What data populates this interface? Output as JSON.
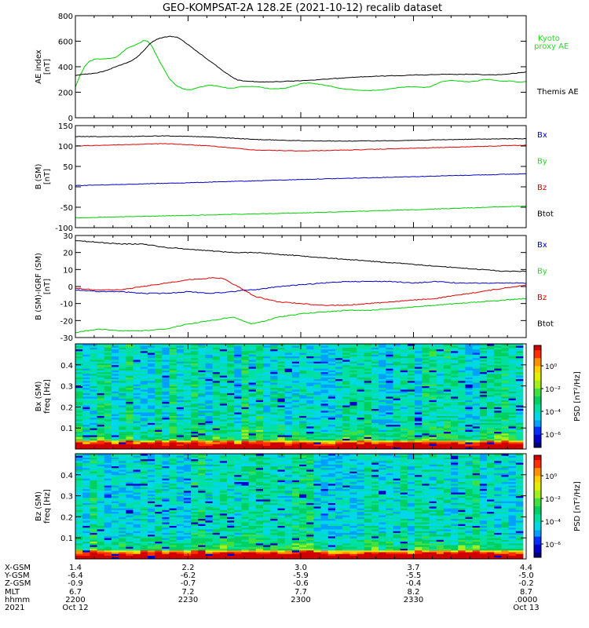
{
  "title": "GEO-KOMPSAT-2A 128.2E (2021-10-12) recalib dataset",
  "colors": {
    "black": "#000000",
    "red": "#e00000",
    "green": "#00d000",
    "blue": "#0000c8",
    "legend_green": "#22dd22",
    "legend_blue": "#0000c8",
    "legend_red": "#d00000"
  },
  "chart_data": [
    {
      "type": "line",
      "id": "ae",
      "ylabel_lines": [
        "AE index",
        "[nT]"
      ],
      "ylim": [
        0,
        800
      ],
      "yticks": [
        0,
        200,
        400,
        600,
        800
      ],
      "time_range": [
        "22:00",
        "24:00"
      ],
      "series": [
        {
          "name": "Kyoto proxy AE",
          "legend_lines": [
            "Kyoto",
            "proxy AE"
          ],
          "color": "#00d000",
          "x": [
            0,
            0.2,
            0.4,
            0.6,
            0.85,
            1.0,
            1.15,
            1.3,
            1.55,
            1.75,
            2.0,
            2.25,
            2.5,
            2.7,
            2.9,
            3.0,
            3.2,
            3.4,
            3.6,
            3.8,
            4.0,
            4.2,
            4.5,
            4.8,
            5.0,
            5.2,
            5.5,
            5.8,
            6.0,
            6.2,
            6.5,
            6.8,
            7.0,
            7.2,
            7.4,
            7.7,
            8.0,
            8.3,
            8.6,
            8.9,
            9.2,
            9.5,
            9.8,
            10.0,
            10.3,
            10.6,
            10.9,
            11.2,
            11.5,
            11.8,
            12.1,
            12.4,
            12.7,
            13.0,
            13.3,
            13.6,
            13.9,
            14.2,
            14.5,
            14.8,
            15.1,
            15.4,
            15.7,
            16.0,
            16.3,
            16.6,
            16.9,
            17.2,
            17.5,
            17.8,
            18.1,
            18.4,
            18.7,
            19.0,
            19.3,
            19.6,
            19.8,
            20.0
          ],
          "y": [
            240,
            330,
            400,
            440,
            460,
            462,
            460,
            462,
            465,
            470,
            500,
            540,
            560,
            575,
            590,
            605,
            600,
            560,
            490,
            420,
            360,
            300,
            250,
            225,
            220,
            222,
            240,
            250,
            255,
            250,
            240,
            232,
            232,
            240,
            245,
            245,
            245,
            238,
            228,
            228,
            230,
            240,
            255,
            268,
            272,
            268,
            260,
            250,
            240,
            230,
            222,
            218,
            215,
            214,
            215,
            218,
            225,
            232,
            240,
            245,
            242,
            238,
            240,
            262,
            285,
            292,
            290,
            285,
            282,
            288,
            300,
            300,
            292,
            285,
            288,
            280,
            280,
            285
          ]
        },
        {
          "name": "Themis AE",
          "legend_lines": [
            "Themis AE"
          ],
          "color": "#000000",
          "x": [
            0,
            0.3,
            0.6,
            0.9,
            1.2,
            1.5,
            1.8,
            2.1,
            2.4,
            2.7,
            3.0,
            3.3,
            3.6,
            3.9,
            4.2,
            4.5,
            4.8,
            5.1,
            5.4,
            5.7,
            6.0,
            6.3,
            6.6,
            6.9,
            7.2,
            7.5,
            7.8,
            8.1,
            8.4,
            8.7,
            9.0,
            9.3,
            9.6,
            9.9,
            10.2,
            10.5,
            10.8,
            11.1,
            11.4,
            11.7,
            12.0,
            12.3,
            12.6,
            12.9,
            13.2,
            13.5,
            13.8,
            14.1,
            14.4,
            14.7,
            15.0,
            15.3,
            15.6,
            15.9,
            16.2,
            16.5,
            16.8,
            17.1,
            17.4,
            17.7,
            18.0,
            18.3,
            18.6,
            18.9,
            19.2,
            19.5,
            19.8,
            20.0
          ],
          "y": [
            330,
            340,
            345,
            350,
            360,
            380,
            400,
            420,
            440,
            470,
            520,
            580,
            615,
            630,
            640,
            632,
            600,
            560,
            520,
            480,
            440,
            400,
            360,
            325,
            295,
            288,
            285,
            282,
            280,
            282,
            283,
            286,
            288,
            290,
            293,
            295,
            298,
            302,
            306,
            310,
            314,
            318,
            320,
            322,
            324,
            326,
            328,
            330,
            330,
            333,
            335,
            336,
            335,
            338,
            340,
            340,
            339,
            340,
            341,
            340,
            338,
            337,
            336,
            338,
            342,
            348,
            355,
            360
          ]
        }
      ]
    },
    {
      "type": "line",
      "id": "bsm",
      "ylabel_lines": [
        "B (SM)",
        "[nT]"
      ],
      "ylim": [
        -100,
        150
      ],
      "yticks": [
        -100,
        -50,
        0,
        50,
        100,
        150
      ],
      "series": [
        {
          "name": "Bx",
          "color": "#0000c8",
          "x": [
            0,
            5,
            10,
            15,
            20
          ],
          "y": [
            3,
            10,
            18,
            25,
            32
          ]
        },
        {
          "name": "By",
          "color": "#00d000",
          "x": [
            0,
            5,
            10,
            15,
            20
          ],
          "y": [
            -76,
            -70,
            -64,
            -56,
            -47
          ]
        },
        {
          "name": "Bz",
          "color": "#e00000",
          "x": [
            0,
            2,
            4,
            6,
            8,
            10,
            12,
            14,
            16,
            18,
            20
          ],
          "y": [
            100,
            103,
            106,
            100,
            90,
            88,
            90,
            93,
            96,
            99,
            102
          ]
        },
        {
          "name": "Btot",
          "color": "#000000",
          "x": [
            0,
            2,
            4,
            6,
            8,
            10,
            12,
            14,
            16,
            18,
            20
          ],
          "y": [
            123,
            123,
            125,
            122,
            116,
            113,
            112,
            113,
            115,
            117,
            118
          ]
        }
      ]
    },
    {
      "type": "line",
      "id": "bigrf",
      "ylabel_lines": [
        "B (SM)-IGRF (SM)",
        "[nT]"
      ],
      "ylim": [
        -30,
        30
      ],
      "yticks": [
        -30,
        -20,
        -10,
        0,
        10,
        20,
        30
      ],
      "series": [
        {
          "name": "Bx",
          "color": "#0000c8",
          "x": [
            0,
            1,
            2,
            3,
            4,
            5,
            6,
            7,
            7.5,
            8,
            9,
            10,
            11,
            12,
            13,
            14,
            15,
            16,
            17,
            18,
            19,
            20
          ],
          "y": [
            -2,
            -3,
            -3,
            -4,
            -4,
            -3,
            -4,
            -3,
            -2,
            -2,
            0,
            1,
            2,
            3,
            3,
            3,
            2,
            3,
            2,
            2,
            2,
            2
          ]
        },
        {
          "name": "By",
          "color": "#00d000",
          "x": [
            0,
            1,
            2,
            3,
            4,
            5,
            6,
            7,
            7.8,
            8.5,
            9,
            10,
            11,
            12,
            13,
            14,
            15,
            16,
            17,
            18,
            19,
            20
          ],
          "y": [
            -27,
            -25,
            -26,
            -26,
            -25,
            -22,
            -20,
            -18,
            -22,
            -20,
            -18,
            -16,
            -15,
            -14,
            -14,
            -13,
            -12,
            -11,
            -10,
            -9,
            -8,
            -7
          ]
        },
        {
          "name": "Bz",
          "color": "#e00000",
          "x": [
            0,
            1,
            2,
            3,
            4,
            5,
            6,
            6.5,
            7.2,
            8,
            9,
            10,
            11,
            12,
            13,
            14,
            15,
            16,
            17,
            18,
            19,
            20
          ],
          "y": [
            -1,
            -2,
            -2,
            0,
            2,
            4,
            5,
            5,
            0,
            -6,
            -9,
            -10,
            -11,
            -11,
            -10,
            -9,
            -8,
            -7,
            -5,
            -3,
            -1,
            1
          ]
        },
        {
          "name": "Btot",
          "color": "#000000",
          "x": [
            0,
            1,
            2,
            3,
            4,
            5,
            6,
            7,
            8,
            9,
            10,
            11,
            12,
            13,
            14,
            15,
            16,
            17,
            18,
            19,
            20
          ],
          "y": [
            27,
            26,
            25,
            25,
            23,
            22,
            21,
            20,
            20,
            19,
            18,
            17,
            16,
            15,
            14,
            13,
            12,
            11,
            10,
            9,
            9
          ]
        }
      ]
    },
    {
      "type": "heatmap",
      "id": "spec_bx",
      "ylabel_lines": [
        "Bx (SM)",
        "freq [Hz]"
      ],
      "ylim": [
        0,
        0.5
      ],
      "yticks": [
        0.1,
        0.2,
        0.3,
        0.4
      ],
      "zlabel": "PSD [nT²/Hz]",
      "zticks": [
        "10⁰",
        "10⁻²",
        "10⁻⁴",
        "10⁻⁶"
      ]
    },
    {
      "type": "heatmap",
      "id": "spec_bz",
      "ylabel_lines": [
        "Bz (SM)",
        "freq [Hz]"
      ],
      "ylim": [
        0,
        0.5
      ],
      "yticks": [
        0.1,
        0.2,
        0.3,
        0.4
      ],
      "zlabel": "PSD [nT²/Hz]",
      "zticks": [
        "10⁰",
        "10⁻²",
        "10⁻⁴",
        "10⁻⁶"
      ]
    }
  ],
  "xaxis": {
    "row_labels": [
      "X-GSM",
      "Y-GSM",
      "Z-GSM",
      "MLT",
      "hhmm",
      "2021"
    ],
    "columns": [
      {
        "values": [
          "1.4",
          "-6.4",
          "-0.9",
          "6.7",
          "2200",
          "Oct 12"
        ]
      },
      {
        "values": [
          "2.2",
          "-6.2",
          "-0.7",
          "7.2",
          "2230",
          ""
        ]
      },
      {
        "values": [
          "3.0",
          "-5.9",
          "-0.6",
          "7.7",
          "2300",
          ""
        ]
      },
      {
        "values": [
          "3.7",
          "-5.5",
          "-0.4",
          "8.2",
          "2330",
          ""
        ]
      },
      {
        "values": [
          "4.4",
          "-5.0",
          "-0.2",
          "8.7",
          ".0000",
          "Oct 13"
        ]
      }
    ]
  }
}
